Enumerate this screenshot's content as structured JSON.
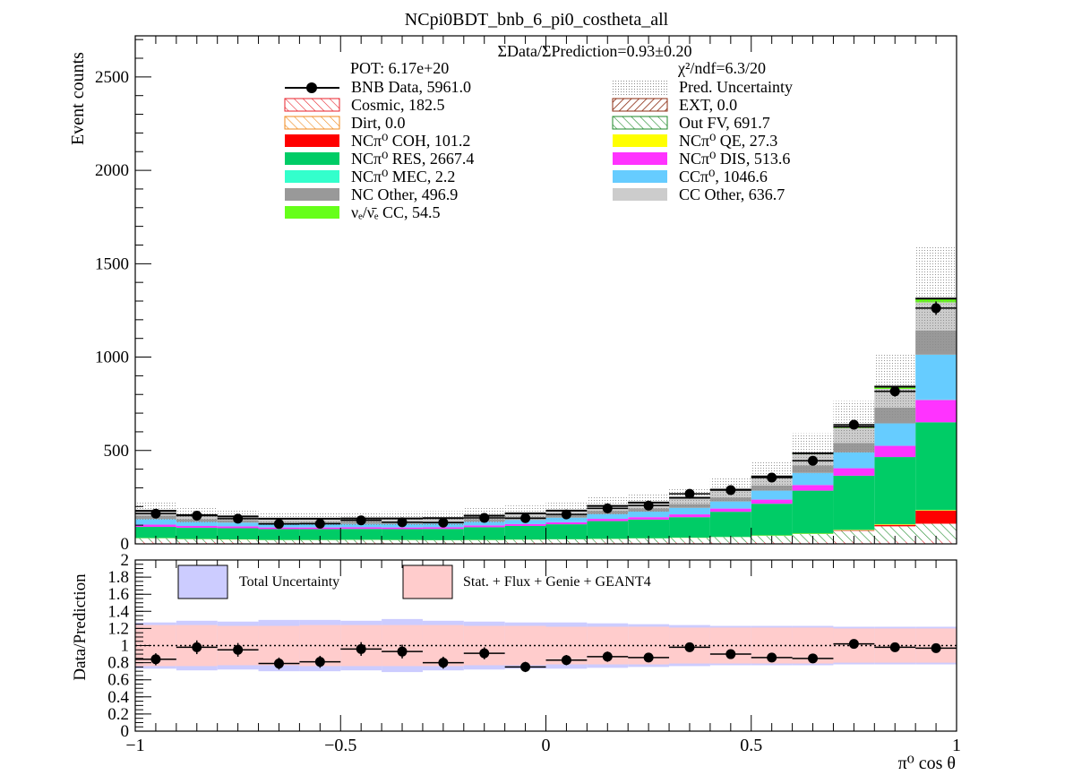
{
  "title": "NCpi0BDT_bnb_6_pi0_costheta_all",
  "top_panel": {
    "ylabel": "Event counts",
    "ratio_text": "ΣData/ΣPrediction=0.93±0.20",
    "pot_text": "POT: 6.17e+20",
    "chi2_text": "χ²/ndf=6.3/20"
  },
  "bottom_panel": {
    "ylabel": "Data/Prediction",
    "xlabel": "π⁰ cos θ",
    "legend": {
      "total": "Total Uncertainty",
      "stat": "Stat. + Flux + Genie + GEANT4"
    }
  },
  "legend": [
    {
      "label": "BNB Data, 5961.0",
      "style": "data",
      "color": "#000000"
    },
    {
      "label": "Pred. Uncertainty",
      "style": "dots",
      "color": "#9a9a9a"
    },
    {
      "label": "Cosmic, 182.5",
      "style": "hatch",
      "color": "#e8222b"
    },
    {
      "label": "EXT, 0.0",
      "style": "hatch2",
      "color": "#8b2c12"
    },
    {
      "label": "Dirt, 0.0",
      "style": "hatch",
      "color": "#f08a1e"
    },
    {
      "label": "Out FV, 691.7",
      "style": "hatch",
      "color": "#1e8a2a"
    },
    {
      "label": "NCπ⁰ COH,  101.2",
      "style": "fill",
      "color": "#ff0000"
    },
    {
      "label": "NCπ⁰ QE,  27.3",
      "style": "fill",
      "color": "#ffff00"
    },
    {
      "label": "NCπ⁰ RES,  2667.4",
      "style": "fill",
      "color": "#00cc66"
    },
    {
      "label": "NCπ⁰ DIS,  513.6",
      "style": "fill",
      "color": "#ff33ff"
    },
    {
      "label": "NCπ⁰ MEC,  2.2",
      "style": "fill",
      "color": "#33ffcc"
    },
    {
      "label": "CCπ⁰, 1046.6",
      "style": "fill",
      "color": "#66ccff"
    },
    {
      "label": "NC Other, 496.9",
      "style": "fill",
      "color": "#999999"
    },
    {
      "label": "CC Other, 636.7",
      "style": "fill",
      "color": "#cccccc"
    },
    {
      "label": "νₑ/ν̄ₑ CC, 54.5",
      "style": "fill",
      "color": "#66ff1a"
    }
  ],
  "chart_data": [
    {
      "type": "bar",
      "stacked": true,
      "title": "NCpi0BDT_bnb_6_pi0_costheta_all",
      "ylabel": "Event counts",
      "xlim": [
        -1,
        1
      ],
      "ylim": [
        0,
        2720
      ],
      "bin_edges": [
        -1.0,
        -0.9,
        -0.8,
        -0.7,
        -0.6,
        -0.5,
        -0.4,
        -0.3,
        -0.2,
        -0.1,
        0.0,
        0.1,
        0.2,
        0.3,
        0.4,
        0.5,
        0.6,
        0.7,
        0.8,
        0.9,
        1.0
      ],
      "yticks": [
        0,
        500,
        1000,
        1500,
        2000,
        2500
      ],
      "xticks": [
        -1,
        -0.5,
        0,
        0.5,
        1
      ],
      "xtick_labels": [
        "−1",
        "−0.5",
        "0",
        "0.5",
        "1"
      ],
      "series": [
        {
          "name": "Cosmic, 182.5",
          "color": "#e8222b",
          "hatch": true,
          "values": [
            12,
            10,
            9,
            8,
            8,
            8,
            8,
            7,
            7,
            8,
            8,
            8,
            9,
            9,
            9,
            10,
            11,
            12,
            14,
            18
          ]
        },
        {
          "name": "Out FV, 691.7",
          "color": "#1e8a2a",
          "hatch": true,
          "values": [
            18,
            15,
            14,
            12,
            12,
            13,
            12,
            12,
            13,
            14,
            16,
            18,
            20,
            23,
            27,
            33,
            42,
            58,
            80,
            90
          ]
        },
        {
          "name": "NCπ⁰ COH,  101.2",
          "color": "#ff0000",
          "values": [
            0,
            0,
            0,
            0,
            0,
            0,
            0,
            0,
            0,
            0,
            0,
            0,
            0,
            0,
            0,
            0,
            0,
            3,
            8,
            70
          ]
        },
        {
          "name": "NCπ⁰ QE,  27.3",
          "color": "#ffff00",
          "values": [
            1,
            1,
            1,
            1,
            1,
            1,
            1,
            1,
            1,
            1,
            1,
            1,
            1,
            1,
            1,
            2,
            2,
            2,
            3,
            3
          ]
        },
        {
          "name": "NCπ⁰ RES,  2667.4",
          "color": "#00cc66",
          "values": [
            60,
            60,
            60,
            58,
            58,
            58,
            58,
            60,
            68,
            73,
            80,
            95,
            100,
            110,
            135,
            170,
            230,
            290,
            360,
            470
          ]
        },
        {
          "name": "NCπ⁰ DIS,  513.6",
          "color": "#ff33ff",
          "values": [
            12,
            10,
            10,
            9,
            9,
            9,
            9,
            9,
            10,
            10,
            11,
            12,
            13,
            15,
            17,
            22,
            30,
            40,
            60,
            120
          ]
        },
        {
          "name": "NCπ⁰ MEC,  2.2",
          "color": "#33ffcc",
          "values": [
            0,
            0,
            0,
            0,
            0,
            0,
            0,
            0,
            0,
            0,
            0,
            0,
            0,
            0,
            0,
            0,
            0,
            0,
            0,
            2
          ]
        },
        {
          "name": "CCπ⁰, 1046.6",
          "color": "#66ccff",
          "values": [
            30,
            22,
            20,
            18,
            18,
            18,
            19,
            19,
            20,
            22,
            24,
            26,
            30,
            35,
            38,
            48,
            65,
            85,
            120,
            240
          ]
        },
        {
          "name": "NC Other, 496.9",
          "color": "#999999",
          "values": [
            18,
            15,
            14,
            12,
            12,
            12,
            12,
            12,
            13,
            15,
            15,
            17,
            18,
            20,
            22,
            27,
            40,
            50,
            85,
            130
          ]
        },
        {
          "name": "CC Other, 636.7",
          "color": "#cccccc",
          "values": [
            25,
            20,
            18,
            16,
            16,
            16,
            16,
            17,
            18,
            19,
            22,
            25,
            28,
            32,
            38,
            45,
            60,
            80,
            100,
            150
          ]
        },
        {
          "name": "νₑ/ν̄ₑ CC, 54.5",
          "color": "#66ff1a",
          "values": [
            1,
            1,
            1,
            1,
            1,
            1,
            1,
            1,
            1,
            1,
            1,
            1,
            2,
            2,
            3,
            4,
            5,
            7,
            12,
            20
          ]
        }
      ],
      "pred_uncertainty": {
        "name": "Pred. Uncertainty",
        "rel_errors": [
          0.27,
          0.27,
          0.26,
          0.26,
          0.27,
          0.27,
          0.28,
          0.27,
          0.27,
          0.26,
          0.25,
          0.24,
          0.23,
          0.22,
          0.22,
          0.22,
          0.22,
          0.22,
          0.21,
          0.21
        ]
      },
      "data": {
        "name": "BNB Data, 5961.0",
        "values": [
          162,
          151,
          135,
          107,
          108,
          126,
          116,
          114,
          139,
          138,
          158,
          190,
          205,
          268,
          288,
          355,
          445,
          638,
          817,
          1262
        ],
        "errors": [
          13,
          12,
          12,
          10,
          10,
          11,
          11,
          11,
          12,
          12,
          13,
          14,
          14,
          16,
          17,
          19,
          21,
          25,
          29,
          36
        ]
      }
    },
    {
      "type": "scatter",
      "title": "",
      "xlabel": "π⁰ cos θ",
      "ylabel": "Data/Prediction",
      "xlim": [
        -1,
        1
      ],
      "ylim": [
        0,
        2
      ],
      "yticks": [
        0,
        0.2,
        0.4,
        0.6,
        0.8,
        1,
        1.2,
        1.4,
        1.6,
        1.8,
        2
      ],
      "ytick_labels": [
        "0",
        "0.2",
        "0.4",
        "0.6",
        "0.8",
        "1",
        "1.2",
        "1.4",
        "1.6",
        "1.8",
        "2"
      ],
      "reference_line": 1,
      "ratio": [
        0.84,
        0.98,
        0.95,
        0.79,
        0.81,
        0.96,
        0.93,
        0.8,
        0.91,
        0.75,
        0.83,
        0.87,
        0.86,
        0.98,
        0.9,
        0.86,
        0.85,
        1.02,
        0.98,
        0.97
      ],
      "ratio_errors": [
        0.07,
        0.08,
        0.08,
        0.07,
        0.07,
        0.08,
        0.08,
        0.07,
        0.07,
        0.06,
        0.06,
        0.06,
        0.05,
        0.05,
        0.05,
        0.04,
        0.04,
        0.04,
        0.03,
        0.03
      ],
      "total_uncertainty": {
        "name": "Total Uncertainty",
        "color": "#ccccff",
        "band": [
          0.27,
          0.29,
          0.28,
          0.3,
          0.3,
          0.29,
          0.31,
          0.29,
          0.28,
          0.27,
          0.27,
          0.26,
          0.25,
          0.24,
          0.23,
          0.23,
          0.23,
          0.22,
          0.22,
          0.22
        ]
      },
      "stat_uncertainty": {
        "name": "Stat. + Flux + Genie + GEANT4",
        "color": "#ffcccc",
        "band": [
          0.24,
          0.24,
          0.23,
          0.23,
          0.24,
          0.24,
          0.24,
          0.24,
          0.23,
          0.23,
          0.22,
          0.22,
          0.22,
          0.21,
          0.21,
          0.21,
          0.21,
          0.2,
          0.2,
          0.2
        ]
      }
    }
  ]
}
